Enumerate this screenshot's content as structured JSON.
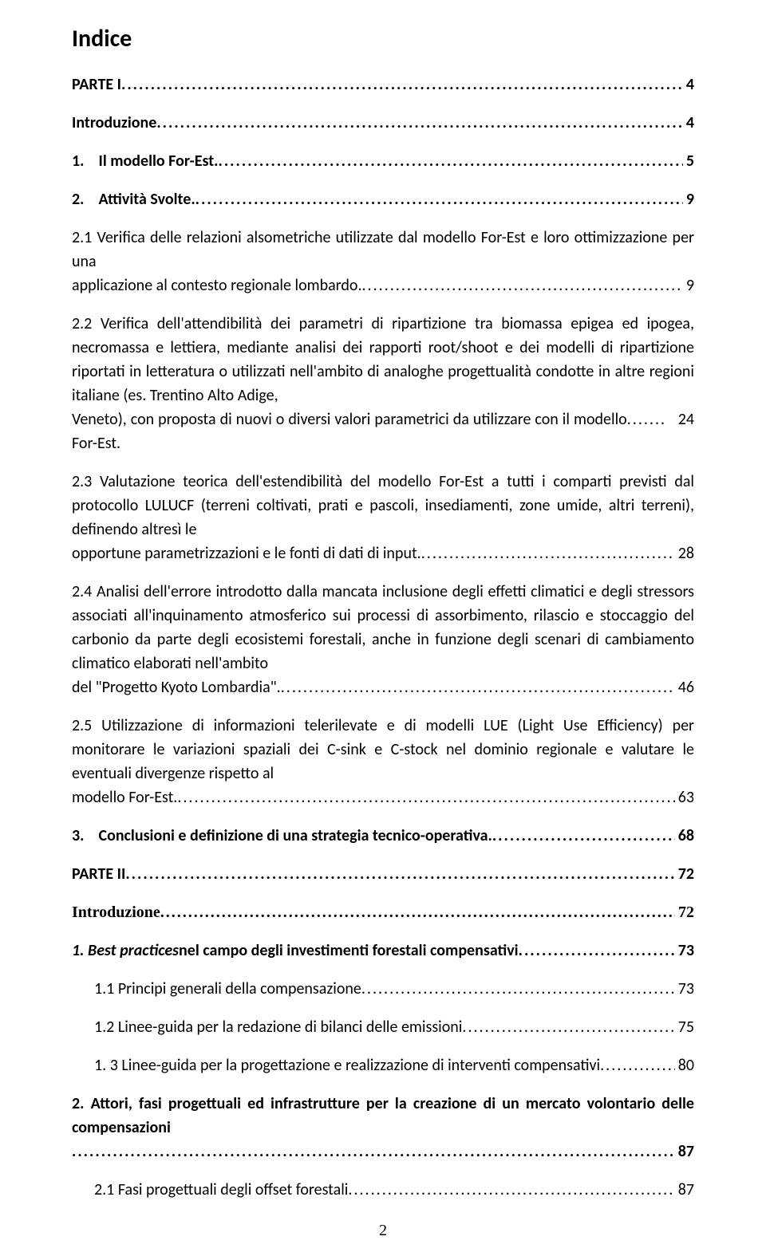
{
  "title": "Indice",
  "dots": "........................................................................................................................................................................................................................................................................................................................",
  "footer_page": "2",
  "entries": {
    "e0": {
      "label": "PARTE I",
      "page": "4",
      "bold": true
    },
    "e1": {
      "label": "Introduzione",
      "page": "4",
      "bold": true
    },
    "e2": {
      "label": "1.",
      "label2": "Il modello For-Est.",
      "page": "5",
      "bold": true
    },
    "e3": {
      "label": "2.",
      "label2": "Attività Svolte.",
      "page": "9",
      "bold": true
    },
    "e4": {
      "body": "2.1  Verifica delle relazioni alsometriche utilizzate dal modello For-Est e loro ottimizzazione per una",
      "tail": "applicazione al contesto regionale lombardo.",
      "page": "9"
    },
    "e5": {
      "body": "2.2  Verifica dell'attendibilità dei parametri di ripartizione tra biomassa epigea ed ipogea, necromassa e lettiera, mediante analisi dei rapporti root/shoot e dei modelli di ripartizione riportati in letteratura o utilizzati nell'ambito di analoghe progettualità condotte in altre regioni italiane (es. Trentino Alto Adige,",
      "tail": "Veneto), con proposta di nuovi o diversi valori parametrici da utilizzare con il modello For-Est. ",
      "page": "24"
    },
    "e6": {
      "body": "2.3  Valutazione teorica dell'estendibilità del modello For-Est a tutti i comparti previsti dal protocollo LULUCF (terreni coltivati, prati e pascoli, insediamenti, zone umide, altri terreni), definendo altresì le",
      "tail": "opportune parametrizzazioni e le fonti di dati di input. ",
      "page": "28"
    },
    "e7": {
      "body": "2.4  Analisi dell'errore introdotto dalla mancata inclusione degli effetti climatici e degli stressors associati all'inquinamento atmosferico sui processi di assorbimento, rilascio e stoccaggio del carbonio da parte degli ecosistemi forestali, anche in funzione degli scenari di cambiamento climatico elaborati nell'ambito",
      "tail": "del \"Progetto Kyoto Lombardia\". ",
      "page": "46"
    },
    "e8": {
      "body": "2.5  Utilizzazione di informazioni telerilevate e di modelli LUE (Light Use Efficiency) per monitorare le variazioni spaziali dei C-sink e C-stock nel dominio regionale e valutare le eventuali divergenze rispetto al",
      "tail": "modello For-Est. ",
      "page": "63"
    },
    "e9": {
      "label": "3.",
      "label2": "Conclusioni e definizione di una strategia tecnico-operativa. ",
      "page": "68",
      "bold": true
    },
    "e10": {
      "label": "PARTE II",
      "page": "72",
      "bold": true
    },
    "e11": {
      "label": "Introduzione",
      "page": "72",
      "bold": true,
      "serif": true
    },
    "e12": {
      "prefix_italic": "1. Best practices",
      "suffix": " nel campo degli investimenti forestali compensativi",
      "page": "73",
      "bold": true
    },
    "e13": {
      "label": "1.1 Principi generali della compensazione ",
      "page": "73",
      "indent": 1
    },
    "e14": {
      "label": "1.2 Linee-guida per la redazione di bilanci delle emissioni",
      "page": "75",
      "indent": 1
    },
    "e15": {
      "label": "1. 3 Linee-guida per la progettazione e realizzazione di interventi compensativi",
      "page": "80",
      "indent": 1
    },
    "e16": {
      "body_bold": "2. Attori, fasi progettuali ed infrastrutture per la creazione di un mercato volontario delle compensazioni",
      "tail": "",
      "page": "87",
      "bold": true
    },
    "e17": {
      "label": "2.1 Fasi progettuali degli offset forestali",
      "page": "87",
      "indent": 1
    }
  }
}
